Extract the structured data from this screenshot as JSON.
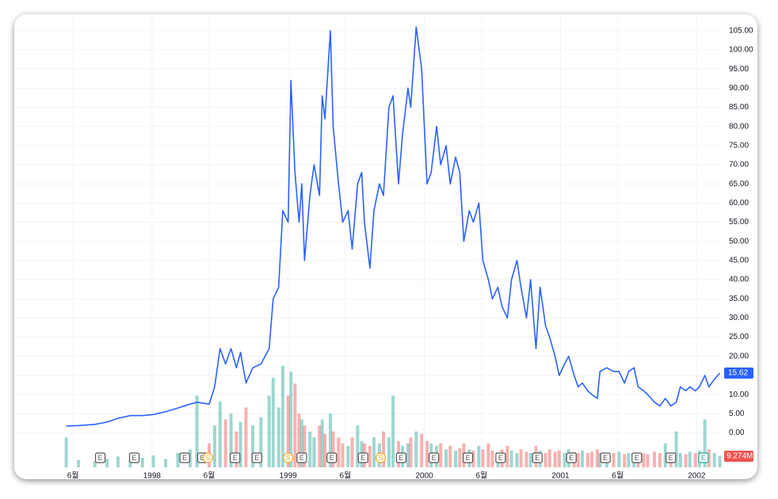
{
  "chart_data": {
    "type": "line",
    "x": [
      1997.37,
      1997.46,
      1997.58,
      1997.67,
      1997.75,
      1997.84,
      1997.93,
      1998.01,
      1998.1,
      1998.19,
      1998.28,
      1998.33,
      1998.42,
      1998.46,
      1998.5,
      1998.54,
      1998.58,
      1998.62,
      1998.65,
      1998.69,
      1998.74,
      1998.8,
      1998.86,
      1998.89,
      1998.93,
      1998.96,
      1999.0,
      1999.02,
      1999.05,
      1999.08,
      1999.1,
      1999.12,
      1999.16,
      1999.19,
      1999.23,
      1999.25,
      1999.27,
      1999.31,
      1999.33,
      1999.37,
      1999.4,
      1999.44,
      1999.47,
      1999.51,
      1999.54,
      1999.56,
      1999.6,
      1999.63,
      1999.67,
      1999.7,
      1999.74,
      1999.77,
      1999.81,
      1999.84,
      1999.88,
      1999.9,
      1999.94,
      1999.98,
      2000.02,
      2000.05,
      2000.09,
      2000.12,
      2000.16,
      2000.19,
      2000.23,
      2000.26,
      2000.29,
      2000.33,
      2000.36,
      2000.4,
      2000.43,
      2000.47,
      2000.5,
      2000.54,
      2000.57,
      2000.61,
      2000.64,
      2000.68,
      2000.71,
      2000.75,
      2000.78,
      2000.82,
      2000.85,
      2000.89,
      2000.92,
      2000.96,
      2000.99,
      2001.03,
      2001.06,
      2001.1,
      2001.13,
      2001.16,
      2001.2,
      2001.23,
      2001.27,
      2001.29,
      2001.34,
      2001.39,
      2001.43,
      2001.47,
      2001.5,
      2001.54,
      2001.57,
      2001.61,
      2001.64,
      2001.69,
      2001.73,
      2001.77,
      2001.81,
      2001.85,
      2001.88,
      2001.92,
      2001.95,
      2001.99,
      2002.02,
      2002.06,
      2002.09,
      2002.13,
      2002.17
    ],
    "series": [
      {
        "color": "#2962ff",
        "values": [
          1.8,
          1.9,
          2.2,
          2.8,
          3.8,
          4.5,
          4.5,
          4.8,
          5.5,
          6.5,
          7.5,
          8,
          7.5,
          12,
          22,
          18,
          22,
          17,
          21,
          13,
          17,
          18,
          22,
          35,
          38,
          58,
          55,
          92,
          68,
          55,
          65,
          45,
          62,
          70,
          62,
          88,
          82,
          105,
          80,
          65,
          55,
          58,
          48,
          65,
          68,
          55,
          43,
          58,
          65,
          62,
          85,
          88,
          65,
          78,
          90,
          85,
          106,
          95,
          65,
          68,
          80,
          70,
          75,
          65,
          72,
          68,
          50,
          58,
          55,
          60,
          45,
          40,
          35,
          38,
          33,
          30,
          40,
          45,
          38,
          30,
          40,
          22,
          38,
          28,
          25,
          20,
          15,
          18,
          20,
          15,
          12,
          13,
          11,
          10,
          9,
          16,
          17,
          16,
          16,
          13,
          16,
          17,
          12,
          11,
          10,
          8,
          7,
          9,
          7,
          8,
          12,
          11,
          12,
          11,
          12,
          15,
          12,
          14,
          15.62
        ]
      },
      {
        "axis": "y2",
        "up_color": "#26a69a",
        "down_color": "#ef5350",
        "last_label": "9.274M",
        "values": [
          25,
          6,
          5,
          7,
          9,
          6,
          8,
          10,
          7,
          12,
          15,
          60,
          20,
          35,
          55,
          40,
          45,
          30,
          38,
          50,
          35,
          42,
          60,
          75,
          50,
          85,
          60,
          80,
          70,
          45,
          40,
          35,
          30,
          25,
          35,
          40,
          28,
          45,
          30,
          25,
          20,
          18,
          25,
          35,
          22,
          20,
          18,
          25,
          20,
          30,
          25,
          60,
          22,
          18,
          20,
          25,
          30,
          28,
          22,
          20,
          18,
          20,
          15,
          18,
          14,
          16,
          20,
          15,
          14,
          18,
          15,
          20,
          14,
          12,
          15,
          18,
          14,
          12,
          15,
          13,
          12,
          18,
          14,
          12,
          15,
          13,
          14,
          12,
          15,
          13,
          12,
          14,
          12,
          13,
          15,
          12,
          11,
          12,
          13,
          11,
          12,
          10,
          11,
          12,
          11,
          13,
          12,
          20,
          10,
          30,
          12,
          11,
          13,
          12,
          14,
          40,
          15,
          12,
          9.274
        ]
      }
    ],
    "xlim": [
      1997.0,
      2002.19
    ],
    "xticks": [
      {
        "value": 1997.42,
        "label": "6월"
      },
      {
        "value": 1998,
        "label": "1998"
      },
      {
        "value": 1998.42,
        "label": "6월"
      },
      {
        "value": 1999,
        "label": "1999"
      },
      {
        "value": 1999.42,
        "label": "6월"
      },
      {
        "value": 2000,
        "label": "2000"
      },
      {
        "value": 2000.42,
        "label": "6월"
      },
      {
        "value": 2001,
        "label": "2001"
      },
      {
        "value": 2001.42,
        "label": "6월"
      },
      {
        "value": 2002,
        "label": "2002"
      }
    ],
    "ylim": [
      -9,
      109.3
    ],
    "yticks": [
      {
        "value": 0,
        "label": "0.00"
      },
      {
        "value": 5,
        "label": "5.00"
      },
      {
        "value": 10,
        "label": "10.00"
      },
      {
        "value": 15,
        "label": "15.00"
      },
      {
        "value": 20,
        "label": "20.00"
      },
      {
        "value": 25,
        "label": "25.00"
      },
      {
        "value": 30,
        "label": "30.00"
      },
      {
        "value": 35,
        "label": "35.00"
      },
      {
        "value": 40,
        "label": "40.00"
      },
      {
        "value": 45,
        "label": "45.00"
      },
      {
        "value": 50,
        "label": "50.00"
      },
      {
        "value": 55,
        "label": "55.00"
      },
      {
        "value": 60,
        "label": "60.00"
      },
      {
        "value": 65,
        "label": "65.00"
      },
      {
        "value": 70,
        "label": "70.00"
      },
      {
        "value": 75,
        "label": "75.00"
      },
      {
        "value": 80,
        "label": "80.00"
      },
      {
        "value": 85,
        "label": "85.00"
      },
      {
        "value": 90,
        "label": "90.00"
      },
      {
        "value": 95,
        "label": "95.00"
      },
      {
        "value": 100,
        "label": "100.00"
      },
      {
        "value": 105,
        "label": "105.00"
      }
    ],
    "y2lim": [
      0,
      379
    ],
    "grid": true,
    "events": [
      {
        "x": 1997.62,
        "label": "E",
        "color": "#555555"
      },
      {
        "x": 1997.87,
        "label": "E",
        "color": "#555555"
      },
      {
        "x": 1998.24,
        "label": "E",
        "color": "#555555"
      },
      {
        "x": 1998.37,
        "label": "E",
        "color": "#555555"
      },
      {
        "x": 1998.41,
        "label": "S",
        "color": "#f7a21b"
      },
      {
        "x": 1998.61,
        "label": "E",
        "color": "#555555"
      },
      {
        "x": 1998.77,
        "label": "E",
        "color": "#555555"
      },
      {
        "x": 1999.0,
        "label": "S",
        "color": "#f7a21b"
      },
      {
        "x": 1999.1,
        "label": "E",
        "color": "#555555"
      },
      {
        "x": 1999.32,
        "label": "E",
        "color": "#555555"
      },
      {
        "x": 1999.55,
        "label": "E",
        "color": "#555555"
      },
      {
        "x": 1999.68,
        "label": "S",
        "color": "#f7a21b"
      },
      {
        "x": 1999.83,
        "label": "E",
        "color": "#555555"
      },
      {
        "x": 2000.07,
        "label": "E",
        "color": "#555555"
      },
      {
        "x": 2000.32,
        "label": "E",
        "color": "#555555"
      },
      {
        "x": 2000.56,
        "label": "E",
        "color": "#555555"
      },
      {
        "x": 2000.83,
        "label": "E",
        "color": "#555555"
      },
      {
        "x": 2001.08,
        "label": "E",
        "color": "#555555"
      },
      {
        "x": 2001.33,
        "label": "E",
        "color": "#555555"
      },
      {
        "x": 2001.56,
        "label": "E",
        "color": "#555555"
      },
      {
        "x": 2001.81,
        "label": "E",
        "color": "#555555"
      },
      {
        "x": 2002.05,
        "label": "E",
        "color": "#22ab94"
      }
    ]
  }
}
